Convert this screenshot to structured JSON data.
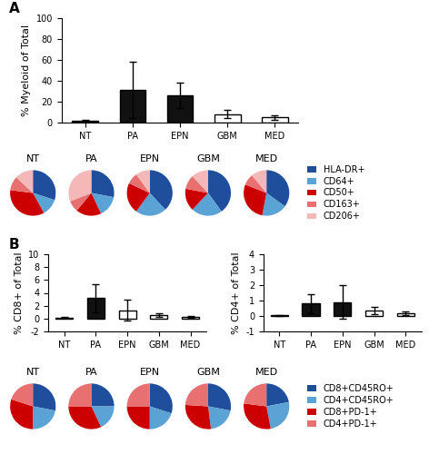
{
  "chart_data": [
    {
      "type": "bar",
      "categories": [
        "NT",
        "PA",
        "EPN",
        "GBM",
        "MED"
      ],
      "values": [
        1.5,
        31,
        26,
        8,
        5
      ],
      "errors": [
        1.0,
        27,
        12,
        4,
        2
      ],
      "colors": [
        "#111111",
        "#111111",
        "#111111",
        "#ffffff",
        "#ffffff"
      ],
      "ylabel": "% Myeloid of Total",
      "ylim": [
        0,
        100
      ],
      "yticks": [
        0,
        20,
        40,
        60,
        80,
        100
      ],
      "annotations": [
        "A"
      ]
    },
    {
      "type": "pie",
      "categories": [
        "HLA-DR+",
        "CD64+",
        "CD50+",
        "CD163+",
        "CD206+"
      ],
      "colors": [
        "#1F4E9C",
        "#5BA3D4",
        "#CC0000",
        "#E87070",
        "#F5B8B8"
      ],
      "series": [
        {
          "name": "NT",
          "values": [
            0.3,
            0.12,
            0.35,
            0.1,
            0.13
          ]
        },
        {
          "name": "PA",
          "values": [
            0.28,
            0.15,
            0.18,
            0.08,
            0.31
          ]
        },
        {
          "name": "EPN",
          "values": [
            0.38,
            0.22,
            0.22,
            0.08,
            0.1
          ]
        },
        {
          "name": "GBM",
          "values": [
            0.4,
            0.22,
            0.16,
            0.1,
            0.12
          ]
        },
        {
          "name": "MED",
          "values": [
            0.35,
            0.18,
            0.28,
            0.08,
            0.11
          ]
        }
      ],
      "legend": "center left"
    },
    {
      "type": "bar",
      "categories": [
        "NT",
        "PA",
        "EPN",
        "GBM",
        "MED"
      ],
      "values": [
        0.15,
        3.2,
        1.3,
        0.5,
        0.2
      ],
      "errors": [
        0.1,
        2.2,
        1.6,
        0.3,
        0.15
      ],
      "colors": [
        "#111111",
        "#111111",
        "#ffffff",
        "#ffffff",
        "#ffffff"
      ],
      "ylabel": "% CD8+ of Total",
      "ylim": [
        -2,
        10
      ],
      "yticks": [
        -2,
        0,
        2,
        4,
        6,
        8,
        10
      ],
      "annotations": [
        "B"
      ]
    },
    {
      "type": "bar",
      "categories": [
        "NT",
        "PA",
        "EPN",
        "GBM",
        "MED"
      ],
      "values": [
        0.05,
        0.8,
        0.9,
        0.35,
        0.18
      ],
      "errors": [
        0.03,
        0.6,
        1.1,
        0.25,
        0.1
      ],
      "colors": [
        "#111111",
        "#111111",
        "#111111",
        "#ffffff",
        "#ffffff"
      ],
      "ylabel": "% CD4+ of Total",
      "ylim": [
        -1,
        4
      ],
      "yticks": [
        -1,
        0,
        1,
        2,
        3,
        4
      ]
    },
    {
      "type": "pie",
      "categories": [
        "CD8+CD45RO+",
        "CD4+CD45RO+",
        "CD8+PD-1+",
        "CD4+PD-1+"
      ],
      "colors": [
        "#1F4E9C",
        "#5BA3D4",
        "#CC0000",
        "#E87070"
      ],
      "series": [
        {
          "name": "NT",
          "values": [
            0.28,
            0.22,
            0.3,
            0.2
          ]
        },
        {
          "name": "PA",
          "values": [
            0.25,
            0.18,
            0.32,
            0.25
          ]
        },
        {
          "name": "EPN",
          "values": [
            0.3,
            0.2,
            0.25,
            0.25
          ]
        },
        {
          "name": "GBM",
          "values": [
            0.28,
            0.2,
            0.28,
            0.24
          ]
        },
        {
          "name": "MED",
          "values": [
            0.22,
            0.25,
            0.3,
            0.23
          ]
        }
      ],
      "legend": "center left"
    }
  ]
}
